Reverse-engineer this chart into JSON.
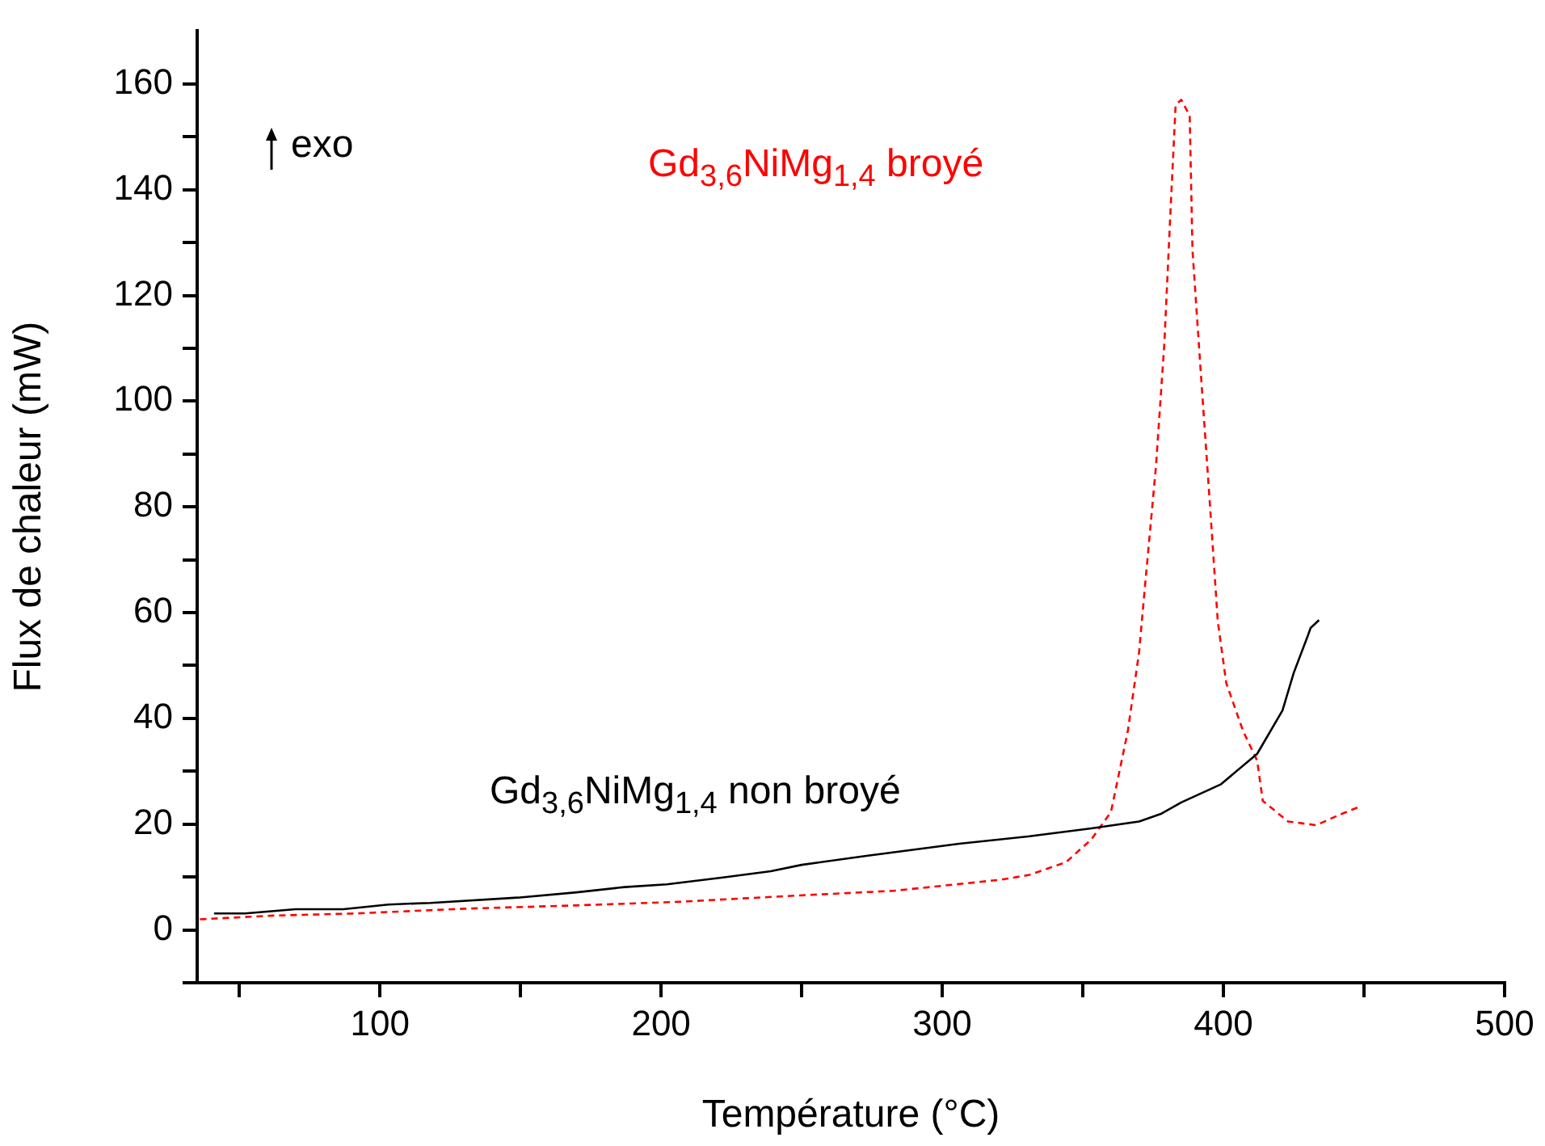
{
  "chart_data": {
    "type": "line",
    "xlabel": "Température (°C)",
    "ylabel": "Flux de chaleur (mW)",
    "xlim": [
      35,
      500
    ],
    "ylim": [
      -10,
      170
    ],
    "xticks": [
      {
        "value": 50,
        "label": null
      },
      100,
      {
        "value": 150,
        "label": null
      },
      200,
      {
        "value": 250,
        "label": null
      },
      300,
      {
        "value": 350,
        "label": null
      },
      400,
      {
        "value": 450,
        "label": null
      },
      500
    ],
    "yticks": [
      {
        "value": -10,
        "label": null
      },
      0,
      {
        "value": 10,
        "label": null
      },
      20,
      {
        "value": 30,
        "label": null
      },
      40,
      {
        "value": 50,
        "label": null
      },
      60,
      {
        "value": 70,
        "label": null
      },
      80,
      {
        "value": 90,
        "label": null
      },
      100,
      {
        "value": 110,
        "label": null
      },
      120,
      {
        "value": 130,
        "label": null
      },
      140,
      {
        "value": 150,
        "label": null
      },
      160
    ],
    "grid": false,
    "legend": false,
    "marker": "none",
    "annotations": [
      "exo"
    ],
    "series": [
      {
        "name": "Gd$_{3,6}$NiMg$_{1,4}$  non broyé",
        "color": "#000000",
        "line_style": "solid",
        "x": [
          41,
          52,
          70,
          87,
          103,
          118,
          149,
          170,
          187,
          202,
          222,
          239,
          250,
          273,
          306,
          331,
          353,
          370,
          378,
          385,
          399,
          412,
          421,
          425,
          430,
          431,
          434
        ],
        "values": [
          3.1,
          3.1,
          3.9,
          3.9,
          4.8,
          5.1,
          6.1,
          7.1,
          8.1,
          8.6,
          9.9,
          11.1,
          12.3,
          14,
          16.3,
          17.7,
          19.2,
          20.5,
          22,
          24.1,
          27.5,
          33.3,
          41.5,
          48.6,
          55.6,
          57.1,
          58.6
        ]
      },
      {
        "name": "Gd$_{3,6}$NiMg$_{1,4}$ broyé",
        "color": "#ff0000",
        "line_style": "dashed",
        "x": [
          36,
          62,
          91,
          130,
          168,
          206,
          245,
          283,
          321,
          331,
          344,
          353,
          360,
          366,
          370,
          372,
          376,
          379,
          381,
          383,
          385,
          388,
          389,
          392,
          395,
          398,
          401,
          407,
          412,
          414,
          423,
          433,
          441,
          448
        ],
        "values": [
          2,
          2.7,
          3.1,
          4,
          4.6,
          5.3,
          6.4,
          7.4,
          9.5,
          10.4,
          12.8,
          17.1,
          22.3,
          37.6,
          52.5,
          64.4,
          87.6,
          111,
          134,
          156,
          157,
          154,
          128.5,
          105,
          82,
          58.3,
          46.7,
          37.6,
          32,
          24.4,
          20.5,
          19.8,
          21.7,
          23.2
        ]
      }
    ]
  }
}
